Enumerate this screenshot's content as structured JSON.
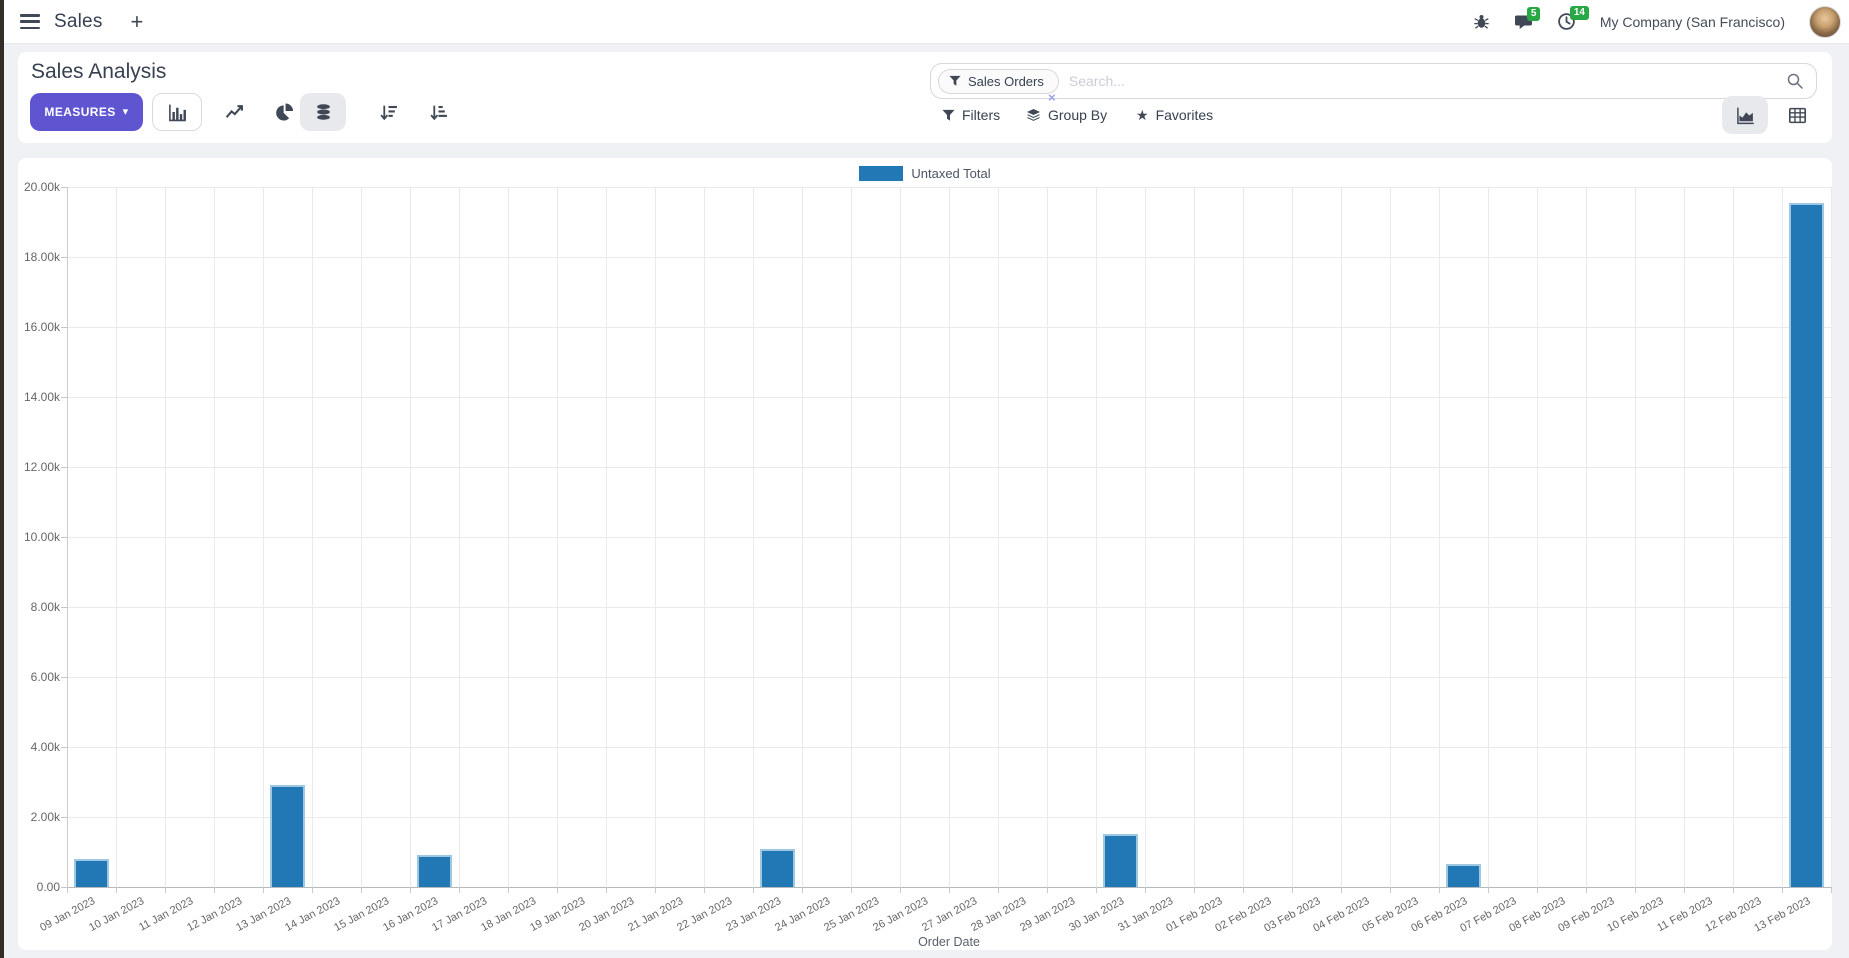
{
  "navbar": {
    "app_name": "Sales",
    "new_label": "+",
    "messages_badge": "5",
    "activities_badge": "14",
    "company": "My Company (San Francisco)"
  },
  "control_panel": {
    "title": "Sales Analysis",
    "measures_label": "MEASURES",
    "caret_glyph": "▾",
    "search": {
      "facet_label": "Sales Orders",
      "remove_glyph": "×",
      "placeholder": "Search..."
    },
    "filters_label": "Filters",
    "group_by_label": "Group By",
    "favorites_label": "Favorites",
    "favorites_glyph": "★"
  },
  "chart_data": {
    "type": "bar",
    "xlabel": "Order Date",
    "legend_position": "top",
    "grid": true,
    "ylim": [
      0,
      20000
    ],
    "y_tick_labels": [
      "0.00",
      "2.00k",
      "4.00k",
      "6.00k",
      "8.00k",
      "10.00k",
      "12.00k",
      "14.00k",
      "16.00k",
      "18.00k",
      "20.00k"
    ],
    "x_tick_rotation": -28,
    "categories": [
      "09 Jan 2023",
      "10 Jan 2023",
      "11 Jan 2023",
      "12 Jan 2023",
      "13 Jan 2023",
      "14 Jan 2023",
      "15 Jan 2023",
      "16 Jan 2023",
      "17 Jan 2023",
      "18 Jan 2023",
      "19 Jan 2023",
      "20 Jan 2023",
      "21 Jan 2023",
      "22 Jan 2023",
      "23 Jan 2023",
      "24 Jan 2023",
      "25 Jan 2023",
      "26 Jan 2023",
      "27 Jan 2023",
      "28 Jan 2023",
      "29 Jan 2023",
      "30 Jan 2023",
      "31 Jan 2023",
      "01 Feb 2023",
      "02 Feb 2023",
      "03 Feb 2023",
      "04 Feb 2023",
      "05 Feb 2023",
      "06 Feb 2023",
      "07 Feb 2023",
      "08 Feb 2023",
      "09 Feb 2023",
      "10 Feb 2023",
      "11 Feb 2023",
      "12 Feb 2023",
      "13 Feb 2023"
    ],
    "series": [
      {
        "name": "Untaxed Total",
        "color": "#2277b5",
        "border_color": "#9ec7e2",
        "values": [
          790,
          0,
          0,
          0,
          2930,
          0,
          0,
          910,
          0,
          0,
          0,
          0,
          0,
          0,
          1080,
          0,
          0,
          0,
          0,
          0,
          0,
          1530,
          0,
          0,
          0,
          0,
          0,
          0,
          650,
          0,
          0,
          0,
          0,
          0,
          0,
          19540
        ]
      }
    ]
  }
}
